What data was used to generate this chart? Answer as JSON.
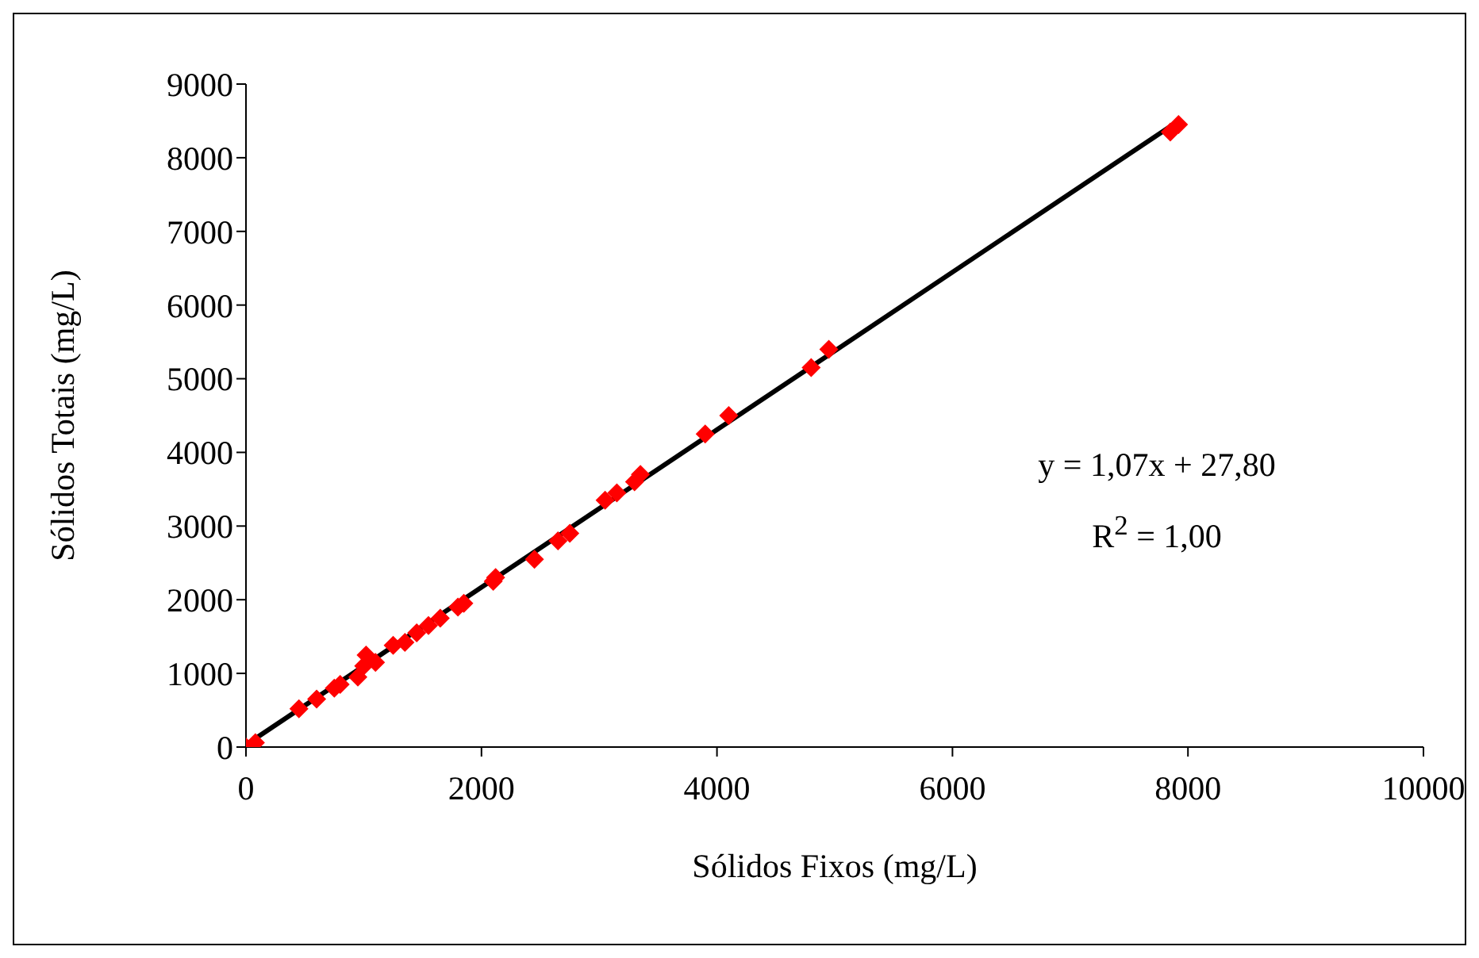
{
  "chart_data": {
    "type": "scatter",
    "xlabel": "Sólidos Fixos (mg/L)",
    "ylabel": "Sólidos Totais (mg/L)",
    "xlim": [
      0,
      10000
    ],
    "xticks": [
      0,
      2000,
      4000,
      6000,
      8000,
      10000
    ],
    "ylim": [
      0,
      9000
    ],
    "yticks": [
      0,
      1000,
      2000,
      3000,
      4000,
      5000,
      6000,
      7000,
      8000,
      9000
    ],
    "marker": "diamond",
    "series": [
      {
        "color": "#ff0000",
        "x": [
          0,
          80,
          450,
          600,
          750,
          800,
          950,
          1000,
          1020,
          1100,
          1250,
          1350,
          1450,
          1550,
          1650,
          1800,
          1850,
          2100,
          2120,
          2450,
          2650,
          2750,
          3050,
          3150,
          3300,
          3350,
          3900,
          4100,
          4800,
          4950,
          7850,
          7920
        ],
        "values": [
          0,
          60,
          520,
          650,
          800,
          850,
          950,
          1100,
          1250,
          1150,
          1380,
          1420,
          1550,
          1650,
          1750,
          1900,
          1950,
          2250,
          2300,
          2550,
          2800,
          2900,
          3350,
          3450,
          3600,
          3700,
          4250,
          4500,
          5150,
          5400,
          8350,
          8450
        ]
      },
      {
        "type": "line",
        "color": "#000000",
        "marker": "none",
        "line_style": "solid",
        "x": [
          0,
          7920
        ],
        "values": [
          30,
          8500
        ]
      }
    ],
    "annotations": [
      "y = 1,07x + 27,80",
      "R$^{2}$ = 1,00"
    ]
  }
}
